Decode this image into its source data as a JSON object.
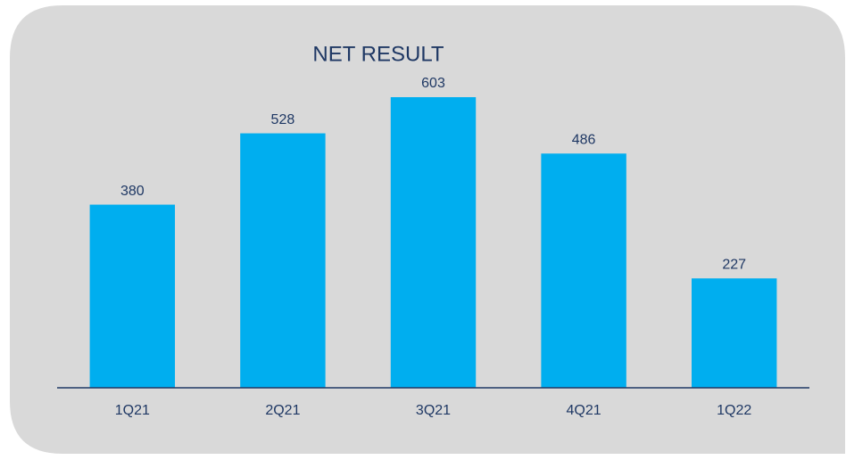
{
  "chart_data": {
    "type": "bar",
    "title": "NET RESULT",
    "categories": [
      "1Q21",
      "2Q21",
      "3Q21",
      "4Q21",
      "1Q22"
    ],
    "values": [
      380,
      528,
      603,
      486,
      227
    ],
    "color": "#00aeef"
  }
}
